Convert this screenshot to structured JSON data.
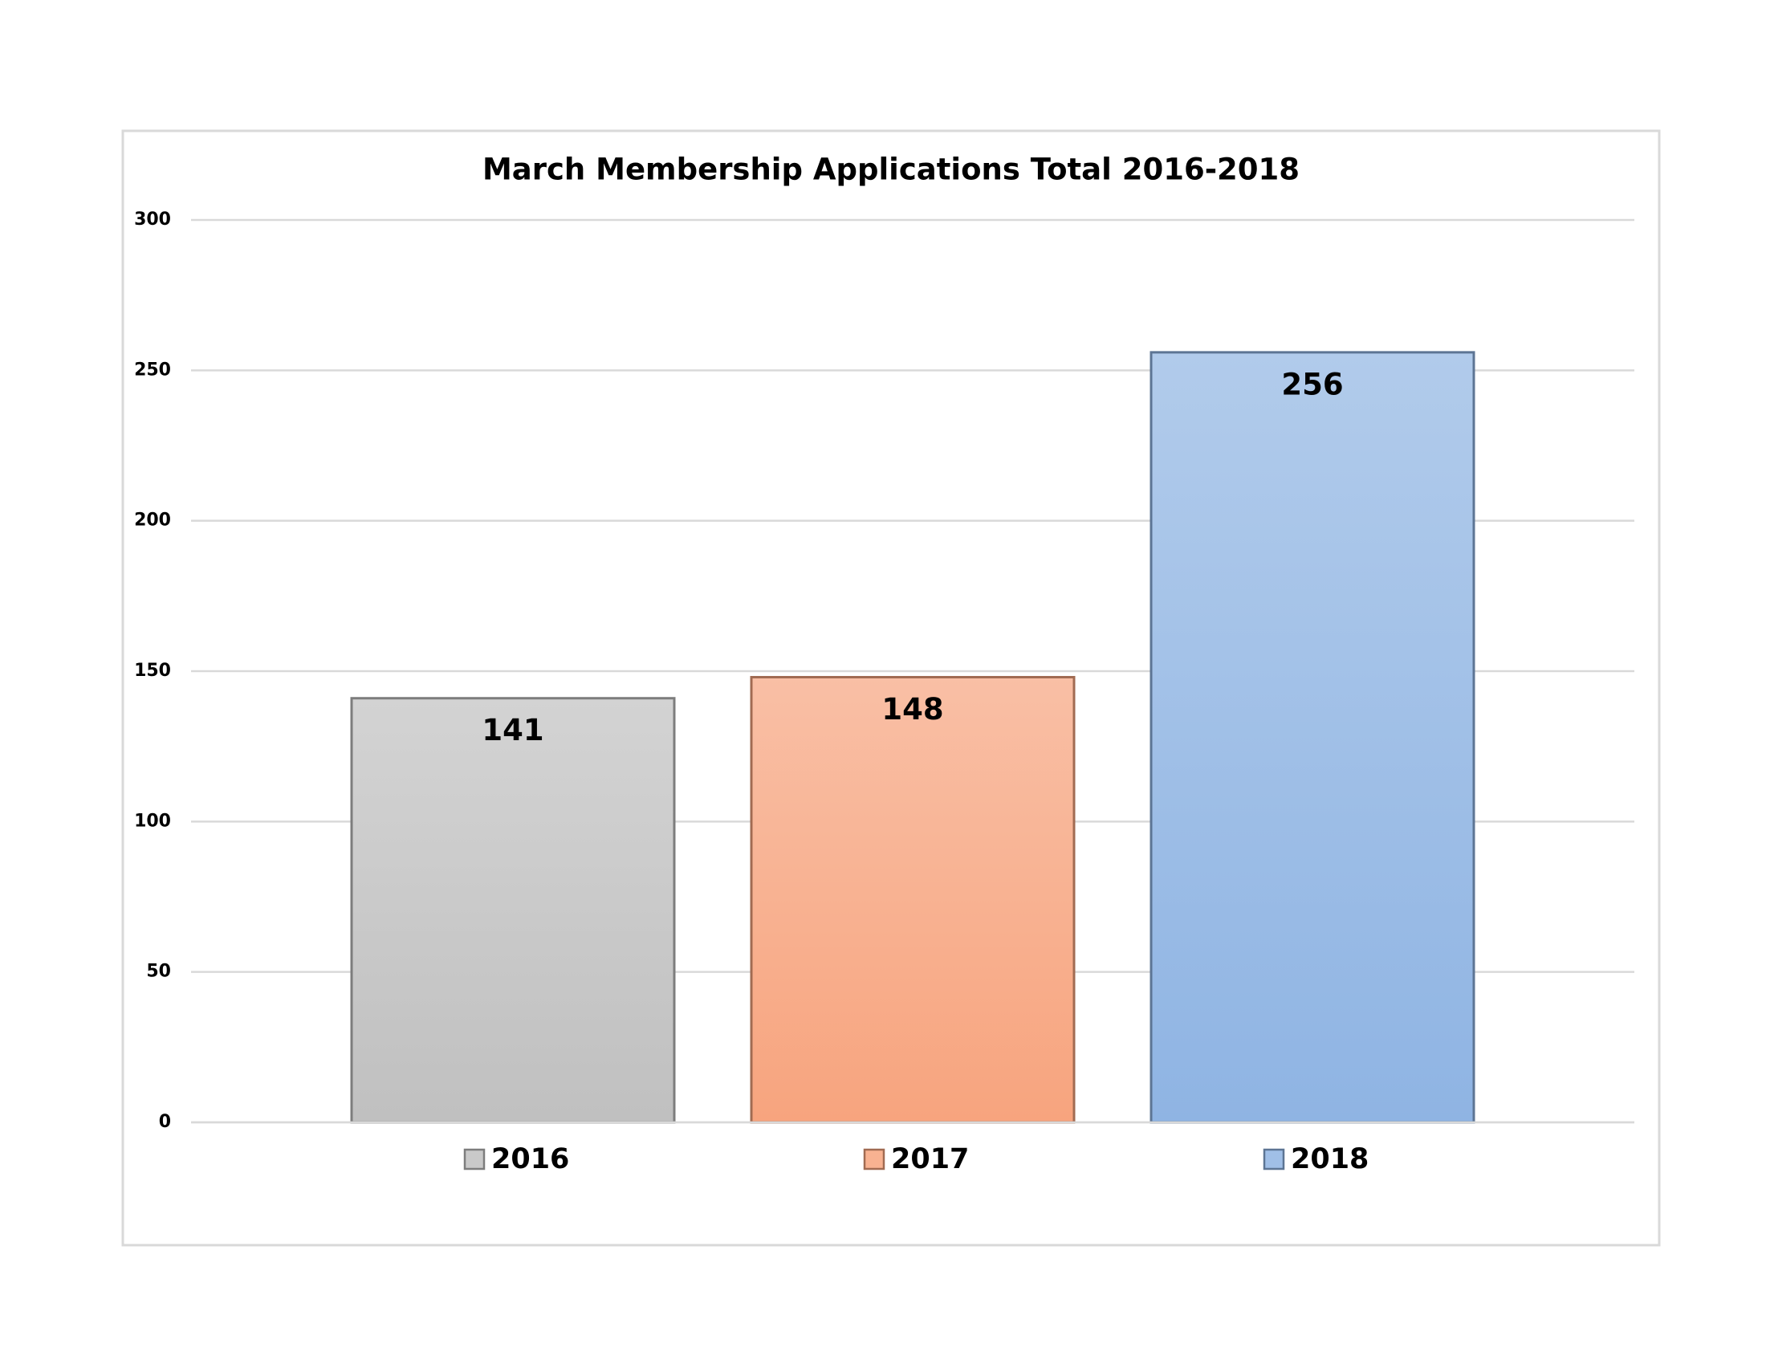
{
  "chart_data": {
    "type": "bar",
    "title": "March Membership Applications Total 2016-2018",
    "series": [
      {
        "name": "2016",
        "color": "#c0c0c0",
        "values": [
          141
        ]
      },
      {
        "name": "2017",
        "color": "#f7a47e",
        "values": [
          148
        ]
      },
      {
        "name": "2018",
        "color": "#8fb4e3",
        "values": [
          256
        ]
      }
    ],
    "ylim": [
      0,
      300
    ],
    "yticks": [
      0,
      50,
      100,
      150,
      200,
      250,
      300
    ],
    "grid": true,
    "legend": "bottom"
  }
}
